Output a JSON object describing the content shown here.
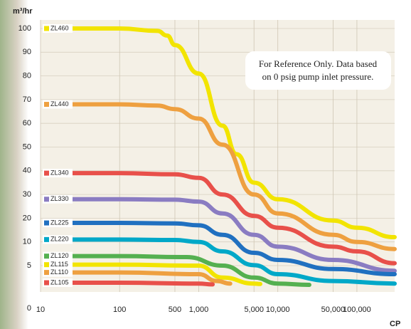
{
  "chart_data": {
    "type": "line",
    "y_label": "m³/hr",
    "x_label": "CP",
    "annotation": [
      "For Reference Only.  Data based",
      "on 0 psig pump inlet pressure."
    ],
    "log_x": true,
    "grid": true,
    "xlim": [
      10,
      300000
    ],
    "xticks": [
      10,
      100,
      500,
      {
        "value": 1000,
        "label": "1,000"
      },
      {
        "value": 5000,
        "label": "5,000"
      },
      {
        "value": 10000,
        "label": "10,000"
      },
      {
        "value": 50000,
        "label": "50,000"
      },
      {
        "value": 100000,
        "label": "100,000"
      }
    ],
    "ylim": [
      0,
      100
    ],
    "yticks": [
      0,
      5,
      10,
      20,
      30,
      40,
      50,
      60,
      70,
      80,
      90,
      100
    ],
    "series": [
      {
        "name": "ZL460",
        "color": "#f2e400",
        "x": [
          12,
          100,
          300,
          400,
          500,
          1000,
          2000,
          3000,
          5000,
          10000,
          50000,
          100000,
          300000
        ],
        "values": [
          100,
          100,
          99,
          97,
          93,
          81,
          59,
          47,
          35,
          28,
          19,
          16,
          12
        ]
      },
      {
        "name": "ZL440",
        "color": "#eea040",
        "x": [
          12,
          100,
          300,
          500,
          1000,
          2000,
          5000,
          10000,
          50000,
          100000,
          300000
        ],
        "values": [
          68,
          68,
          67.5,
          66,
          62,
          51,
          30,
          22,
          13,
          10,
          8.5
        ]
      },
      {
        "name": "ZL340",
        "color": "#e8504a",
        "x": [
          12,
          100,
          500,
          1000,
          2000,
          5000,
          10000,
          50000,
          100000,
          300000
        ],
        "values": [
          39,
          39,
          38.5,
          37,
          30,
          21,
          16,
          9,
          8,
          5.5
        ]
      },
      {
        "name": "ZL330",
        "color": "#8a7cc2",
        "x": [
          12,
          100,
          500,
          1000,
          2000,
          5000,
          10000,
          50000,
          300000
        ],
        "values": [
          28,
          28,
          27.8,
          27,
          22,
          13,
          9,
          6.2,
          4.4
        ]
      },
      {
        "name": "ZL225",
        "color": "#2070c0",
        "x": [
          12,
          100,
          500,
          1000,
          2000,
          5000,
          10000,
          50000,
          300000
        ],
        "values": [
          18,
          18,
          17.8,
          17,
          13,
          7.7,
          6.2,
          4.6,
          4
        ]
      },
      {
        "name": "ZL220",
        "color": "#00a8c8",
        "x": [
          12,
          100,
          500,
          1000,
          2000,
          5000,
          10000,
          50000,
          300000
        ],
        "values": [
          11,
          11,
          10.8,
          10,
          8,
          5.1,
          4,
          3.2,
          2.9
        ]
      },
      {
        "name": "ZL120",
        "color": "#55b050",
        "x": [
          12,
          100,
          700,
          2000,
          5000,
          10000,
          25000
        ],
        "values": [
          7,
          7,
          6.8,
          5,
          3.6,
          2.9,
          2.75
        ]
      },
      {
        "name": "ZL115",
        "color": "#f2e400",
        "x": [
          12,
          100,
          1000,
          2000,
          5000,
          6000
        ],
        "values": [
          5.2,
          5.2,
          5,
          3.6,
          2.9,
          2.85
        ]
      },
      {
        "name": "ZL110",
        "color": "#eea040",
        "x": [
          12,
          100,
          1000,
          1700,
          2500
        ],
        "values": [
          4.2,
          4.2,
          4,
          3.2,
          2.9
        ]
      },
      {
        "name": "ZL105",
        "color": "#e8504a",
        "x": [
          12,
          100,
          1000,
          1500
        ],
        "values": [
          3,
          3,
          2.9,
          2.8
        ]
      }
    ]
  }
}
